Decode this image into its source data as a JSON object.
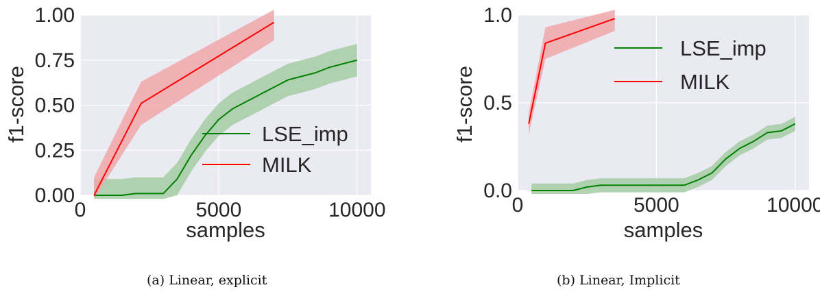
{
  "chart_data": [
    {
      "type": "line",
      "caption": "(a) Linear, explicit",
      "xlabel": "samples",
      "ylabel": "f1-score",
      "xlim": [
        0,
        10500
      ],
      "ylim": [
        0,
        1.0
      ],
      "xticks": [
        0,
        5000,
        10000
      ],
      "xtick_labels": [
        "0",
        "5000",
        "10000"
      ],
      "yticks": [
        0,
        0.25,
        0.5,
        0.75,
        1.0
      ],
      "ytick_labels": [
        "0.00",
        "0.25",
        "0.50",
        "0.75",
        "1.00"
      ],
      "grid": true,
      "legend_position": "center-right",
      "series": [
        {
          "name": "LSE_imp",
          "color": "#008000",
          "band_color": "#a5cca5",
          "x": [
            500,
            1500,
            2000,
            3000,
            3500,
            4000,
            4500,
            5000,
            5500,
            6000,
            6500,
            7000,
            7500,
            8000,
            8500,
            9000,
            9500,
            10000
          ],
          "y": [
            0.0,
            0.0,
            0.01,
            0.01,
            0.09,
            0.22,
            0.33,
            0.42,
            0.48,
            0.52,
            0.56,
            0.6,
            0.64,
            0.66,
            0.68,
            0.71,
            0.73,
            0.75
          ],
          "band": [
            0.09,
            0.09,
            0.09,
            0.09,
            0.09,
            0.09,
            0.09,
            0.09,
            0.09,
            0.09,
            0.09,
            0.09,
            0.09,
            0.09,
            0.09,
            0.09,
            0.09,
            0.09
          ]
        },
        {
          "name": "MILK",
          "color": "#ff0000",
          "band_color": "#f0a7a9",
          "x": [
            500,
            2200,
            7000
          ],
          "y": [
            0.0,
            0.51,
            0.96
          ],
          "band": [
            0.1,
            0.12,
            0.1
          ]
        }
      ]
    },
    {
      "type": "line",
      "caption": "(b) Linear, Implicit",
      "xlabel": "samples",
      "ylabel": "f1-score",
      "xlim": [
        0,
        10500
      ],
      "ylim": [
        0,
        1.0
      ],
      "xticks": [
        0,
        5000,
        10000
      ],
      "xtick_labels": [
        "0",
        "5000",
        "10000"
      ],
      "yticks": [
        0,
        0.5,
        1.0
      ],
      "ytick_labels": [
        "0.0",
        "0.5",
        "1.0"
      ],
      "grid": true,
      "legend_position": "upper-center",
      "series": [
        {
          "name": "LSE_imp",
          "color": "#008000",
          "band_color": "#a5cca5",
          "x": [
            500,
            1000,
            2000,
            2500,
            3000,
            4000,
            5000,
            6000,
            6500,
            7000,
            7500,
            8000,
            8500,
            9000,
            9500,
            10000
          ],
          "y": [
            0.0,
            0.0,
            0.0,
            0.02,
            0.03,
            0.03,
            0.03,
            0.03,
            0.06,
            0.1,
            0.18,
            0.24,
            0.28,
            0.33,
            0.34,
            0.38
          ],
          "band": [
            0.04,
            0.04,
            0.04,
            0.04,
            0.04,
            0.04,
            0.04,
            0.04,
            0.04,
            0.04,
            0.04,
            0.04,
            0.04,
            0.04,
            0.04,
            0.04
          ]
        },
        {
          "name": "MILK",
          "color": "#ff0000",
          "band_color": "#f0a7a9",
          "x": [
            400,
            1000,
            3500
          ],
          "y": [
            0.38,
            0.84,
            0.98
          ],
          "band": [
            0.06,
            0.09,
            0.07
          ]
        }
      ]
    }
  ]
}
